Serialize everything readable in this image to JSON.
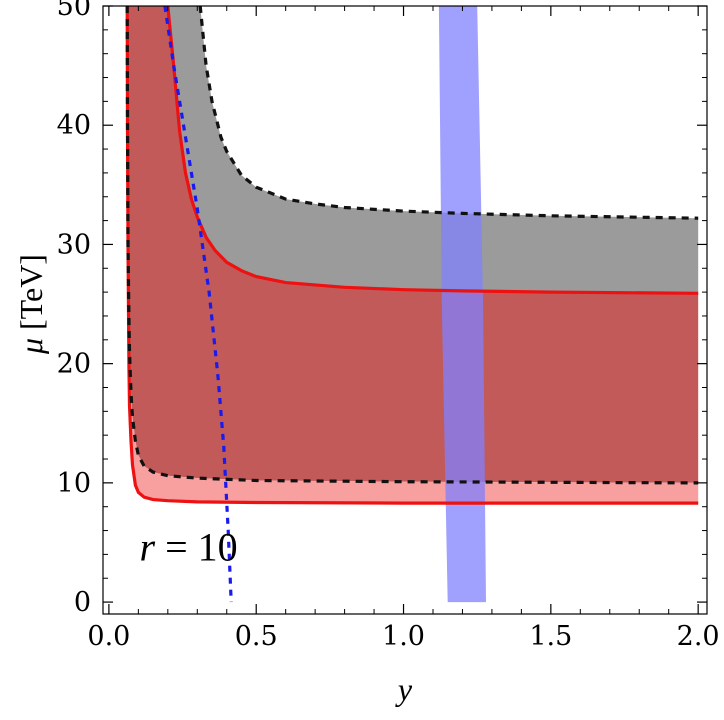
{
  "chart_data": {
    "type": "area",
    "xlabel": "y",
    "ylabel": {
      "symbol": "μ",
      "unit": "[TeV]"
    },
    "xlim": [
      -0.02,
      2.03
    ],
    "ylim": [
      -1,
      50
    ],
    "xticks": [
      0.0,
      0.5,
      1.0,
      1.5,
      2.0
    ],
    "xtick_labels": [
      "0.0",
      "0.5",
      "1.0",
      "1.5",
      "2.0"
    ],
    "yticks": [
      0,
      10,
      20,
      30,
      40,
      50
    ],
    "ytick_labels": [
      "0",
      "10",
      "20",
      "30",
      "40",
      "50"
    ],
    "grid": false,
    "legend": "none",
    "annotation": {
      "text": "r = 10",
      "variable": "r",
      "rest": " = 10",
      "x": 0.07,
      "y": 4.5
    },
    "colors": {
      "gray_fill": "#9b9b9b",
      "dark_red_fill": "#c25a5a",
      "pink_fill": "#f8a0a0",
      "red_line": "#ee1111",
      "black_dashed": "#111111",
      "blue_dotted": "#1a1aee",
      "blue_band": "#8080ff"
    },
    "series": [
      {
        "style": "red-solid",
        "role": "lower-red",
        "y_asymptote": 0.062,
        "x": [
          0.062,
          0.063,
          0.065,
          0.068,
          0.07,
          0.075,
          0.08,
          0.09,
          0.1,
          0.12,
          0.15,
          0.2,
          0.3,
          0.5,
          1.0,
          1.5,
          2.0
        ],
        "y": [
          50,
          40,
          30,
          20,
          16.5,
          13.5,
          11.5,
          9.8,
          9.2,
          8.8,
          8.6,
          8.5,
          8.4,
          8.35,
          8.3,
          8.3,
          8.3
        ]
      },
      {
        "style": "black-dashed",
        "role": "lower-black",
        "x": [
          0.062,
          0.063,
          0.065,
          0.068,
          0.07,
          0.075,
          0.08,
          0.09,
          0.1,
          0.12,
          0.15,
          0.2,
          0.3,
          0.5,
          1.0,
          1.5,
          2.0
        ],
        "y": [
          50,
          40,
          30,
          24,
          21,
          17.5,
          15.5,
          13.5,
          12.3,
          11.4,
          10.9,
          10.6,
          10.4,
          10.2,
          10.1,
          10.05,
          10.0
        ]
      },
      {
        "style": "red-solid",
        "role": "upper-red",
        "x": [
          0.2,
          0.22,
          0.24,
          0.26,
          0.28,
          0.3,
          0.33,
          0.36,
          0.4,
          0.45,
          0.5,
          0.6,
          0.8,
          1.0,
          1.2,
          1.5,
          2.0
        ],
        "y": [
          50,
          45,
          39.5,
          36,
          33.8,
          32.3,
          30.6,
          29.5,
          28.5,
          27.8,
          27.3,
          26.8,
          26.4,
          26.2,
          26.1,
          26.0,
          25.9
        ]
      },
      {
        "style": "black-dashed",
        "role": "upper-black",
        "x": [
          0.31,
          0.33,
          0.35,
          0.38,
          0.4,
          0.45,
          0.5,
          0.6,
          0.7,
          0.8,
          1.0,
          1.2,
          1.5,
          2.0
        ],
        "y": [
          50,
          45,
          42,
          39,
          37.8,
          35.8,
          34.8,
          33.8,
          33.4,
          33.1,
          32.8,
          32.6,
          32.4,
          32.2
        ]
      },
      {
        "style": "blue-dotted",
        "role": "r-contour",
        "x": [
          0.19,
          0.22,
          0.26,
          0.3,
          0.34,
          0.37,
          0.39,
          0.405,
          0.415
        ],
        "y": [
          50,
          45,
          39,
          33,
          26,
          19,
          13,
          6,
          0
        ]
      },
      {
        "style": "blue-band",
        "role": "band",
        "x_left": [
          1.12,
          1.13,
          1.15
        ],
        "x_right": [
          1.25,
          1.27,
          1.28
        ],
        "y": [
          50,
          25,
          0
        ]
      }
    ]
  }
}
